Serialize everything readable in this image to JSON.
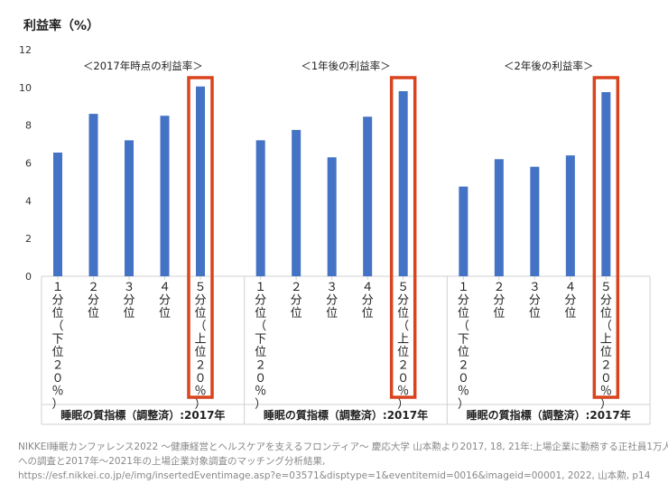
{
  "chart_data": {
    "type": "bar",
    "ylabel": "利益率（%）",
    "ylim": [
      0,
      12
    ],
    "yticks": [
      0,
      2,
      4,
      6,
      8,
      10,
      12
    ],
    "grid": false,
    "categories": [
      "１分位（下位２０％）",
      "２分位",
      "３分位",
      "４分位",
      "５分位（上位２０％）"
    ],
    "category_axis_label": "睡眠の質指標（調整済）:2017年",
    "highlight_category": "５分位（上位２０％）",
    "highlight_color": "#d9441e",
    "bar_color": "#4472c4",
    "panels": [
      {
        "title": "＜2017年時点の利益率＞",
        "values": [
          6.55,
          8.6,
          7.2,
          8.5,
          10.05
        ]
      },
      {
        "title": "＜1年後の利益率＞",
        "values": [
          7.2,
          7.75,
          6.3,
          8.45,
          9.8
        ]
      },
      {
        "title": "＜2年後の利益率＞",
        "values": [
          4.75,
          6.2,
          5.8,
          6.4,
          9.75
        ]
      }
    ]
  },
  "source": {
    "lines": [
      "NIKKEI睡眠カンファレンス2022 〜健康経営とヘルスケアを支えるフロンティア〜 慶応大学 山本勲より2017, 18, 21年:上場企業に勤務する正社員1万人",
      "への調査と2017年〜2021年の上場企業対象調査のマッチング分析結果,",
      "https://esf.nikkei.co.jp/e/img/insertedEventimage.asp?e=03571&disptype=1&eventitemid=0016&imageid=00001, 2022, 山本勲, p14"
    ]
  }
}
